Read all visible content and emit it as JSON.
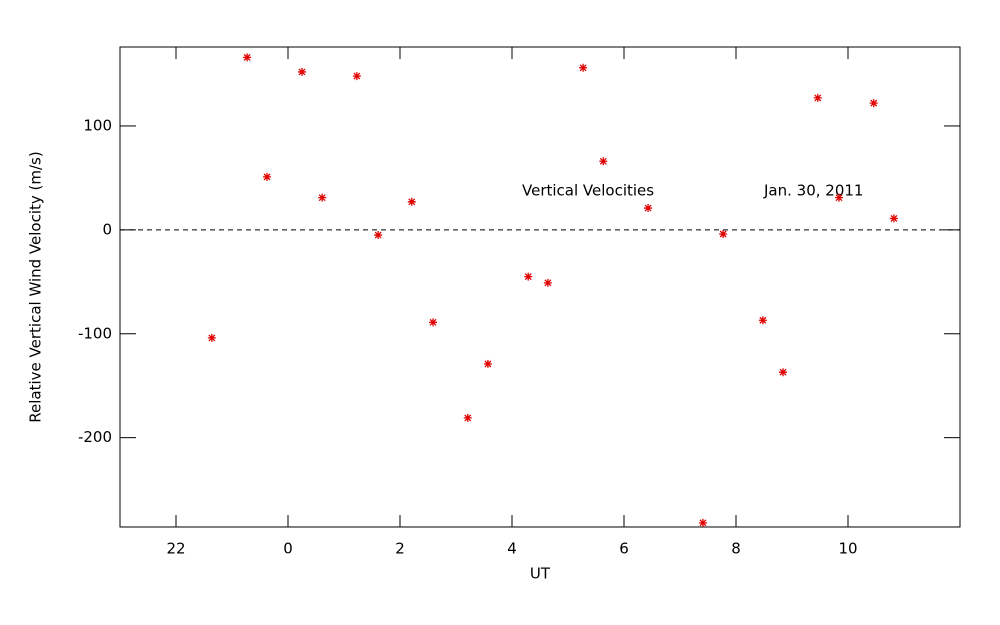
{
  "chart_data": {
    "type": "scatter",
    "x_label": "UT",
    "y_label": "Relative Vertical Wind Velocity (m/s)",
    "annotations": [
      "Vertical Velocities",
      "Jan. 30, 2011"
    ],
    "x": [
      -1.36,
      -0.73,
      -0.375,
      0.25,
      0.61,
      1.23,
      1.61,
      2.21,
      2.59,
      3.21,
      3.57,
      4.29,
      4.64,
      5.27,
      5.63,
      6.43,
      7.41,
      7.77,
      8.48,
      8.84,
      9.46,
      9.84,
      10.46,
      10.82
    ],
    "values": [
      -104,
      166,
      51,
      152,
      31,
      148,
      -5,
      27,
      -89,
      -181,
      -129,
      -45,
      -51,
      156,
      66,
      21,
      -282,
      -4,
      -87,
      -137,
      127,
      31,
      122,
      11
    ],
    "color": "#e00000",
    "xlim": [
      -3,
      12
    ],
    "ylim": [
      -286,
      176
    ],
    "xticks": [
      {
        "value": -2,
        "label": "22"
      },
      0,
      2,
      4,
      6,
      8,
      10
    ],
    "yticks": [
      -200,
      -100,
      0,
      100
    ],
    "reference_line": 0
  }
}
